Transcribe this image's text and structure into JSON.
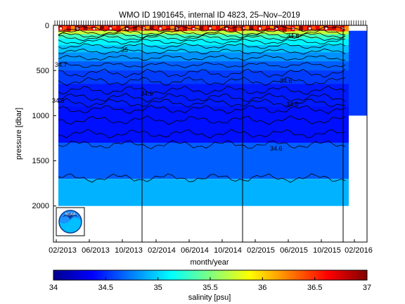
{
  "chart_data": {
    "type": "heatmap",
    "title": "WMO ID 1901645, internal ID 4823, 25–Nov–2019",
    "xlabel": "month/year",
    "ylabel": "pressure [dbar]",
    "x_ticks": [
      "02/2013",
      "06/2013",
      "10/2013",
      "02/2014",
      "06/2014",
      "10/2014",
      "02/2015",
      "06/2015",
      "10/2015",
      "02/2016"
    ],
    "y_ticks": [
      "0",
      "500",
      "1000",
      "1500",
      "2000"
    ],
    "ylim": [
      0,
      2400
    ],
    "y_reversed": true,
    "colorbar": {
      "label": "salinity [psu]",
      "ticks": [
        "34",
        "34.5",
        "35",
        "35.5",
        "36",
        "36.5",
        "37"
      ],
      "range": [
        34,
        37
      ],
      "colormap": "jet"
    },
    "contour_labels": [
      "35",
      "34.7",
      "34.6",
      "34.6",
      "34.6",
      "34.6",
      "34.6",
      "34.6",
      "34.6"
    ],
    "salinity_layers": [
      {
        "depth_top": 0,
        "depth_bottom": 60,
        "salinity": 36.7
      },
      {
        "depth_top": 60,
        "depth_bottom": 150,
        "salinity": 35.4
      },
      {
        "depth_top": 150,
        "depth_bottom": 300,
        "salinity": 35.0
      },
      {
        "depth_top": 300,
        "depth_bottom": 500,
        "salinity": 34.7
      },
      {
        "depth_top": 500,
        "depth_bottom": 1300,
        "salinity": 34.45
      },
      {
        "depth_top": 1300,
        "depth_bottom": 1700,
        "salinity": 34.65
      },
      {
        "depth_top": 1700,
        "depth_bottom": 2000,
        "salinity": 34.9
      }
    ],
    "grid": false,
    "legend": "colorbar-bottom"
  }
}
